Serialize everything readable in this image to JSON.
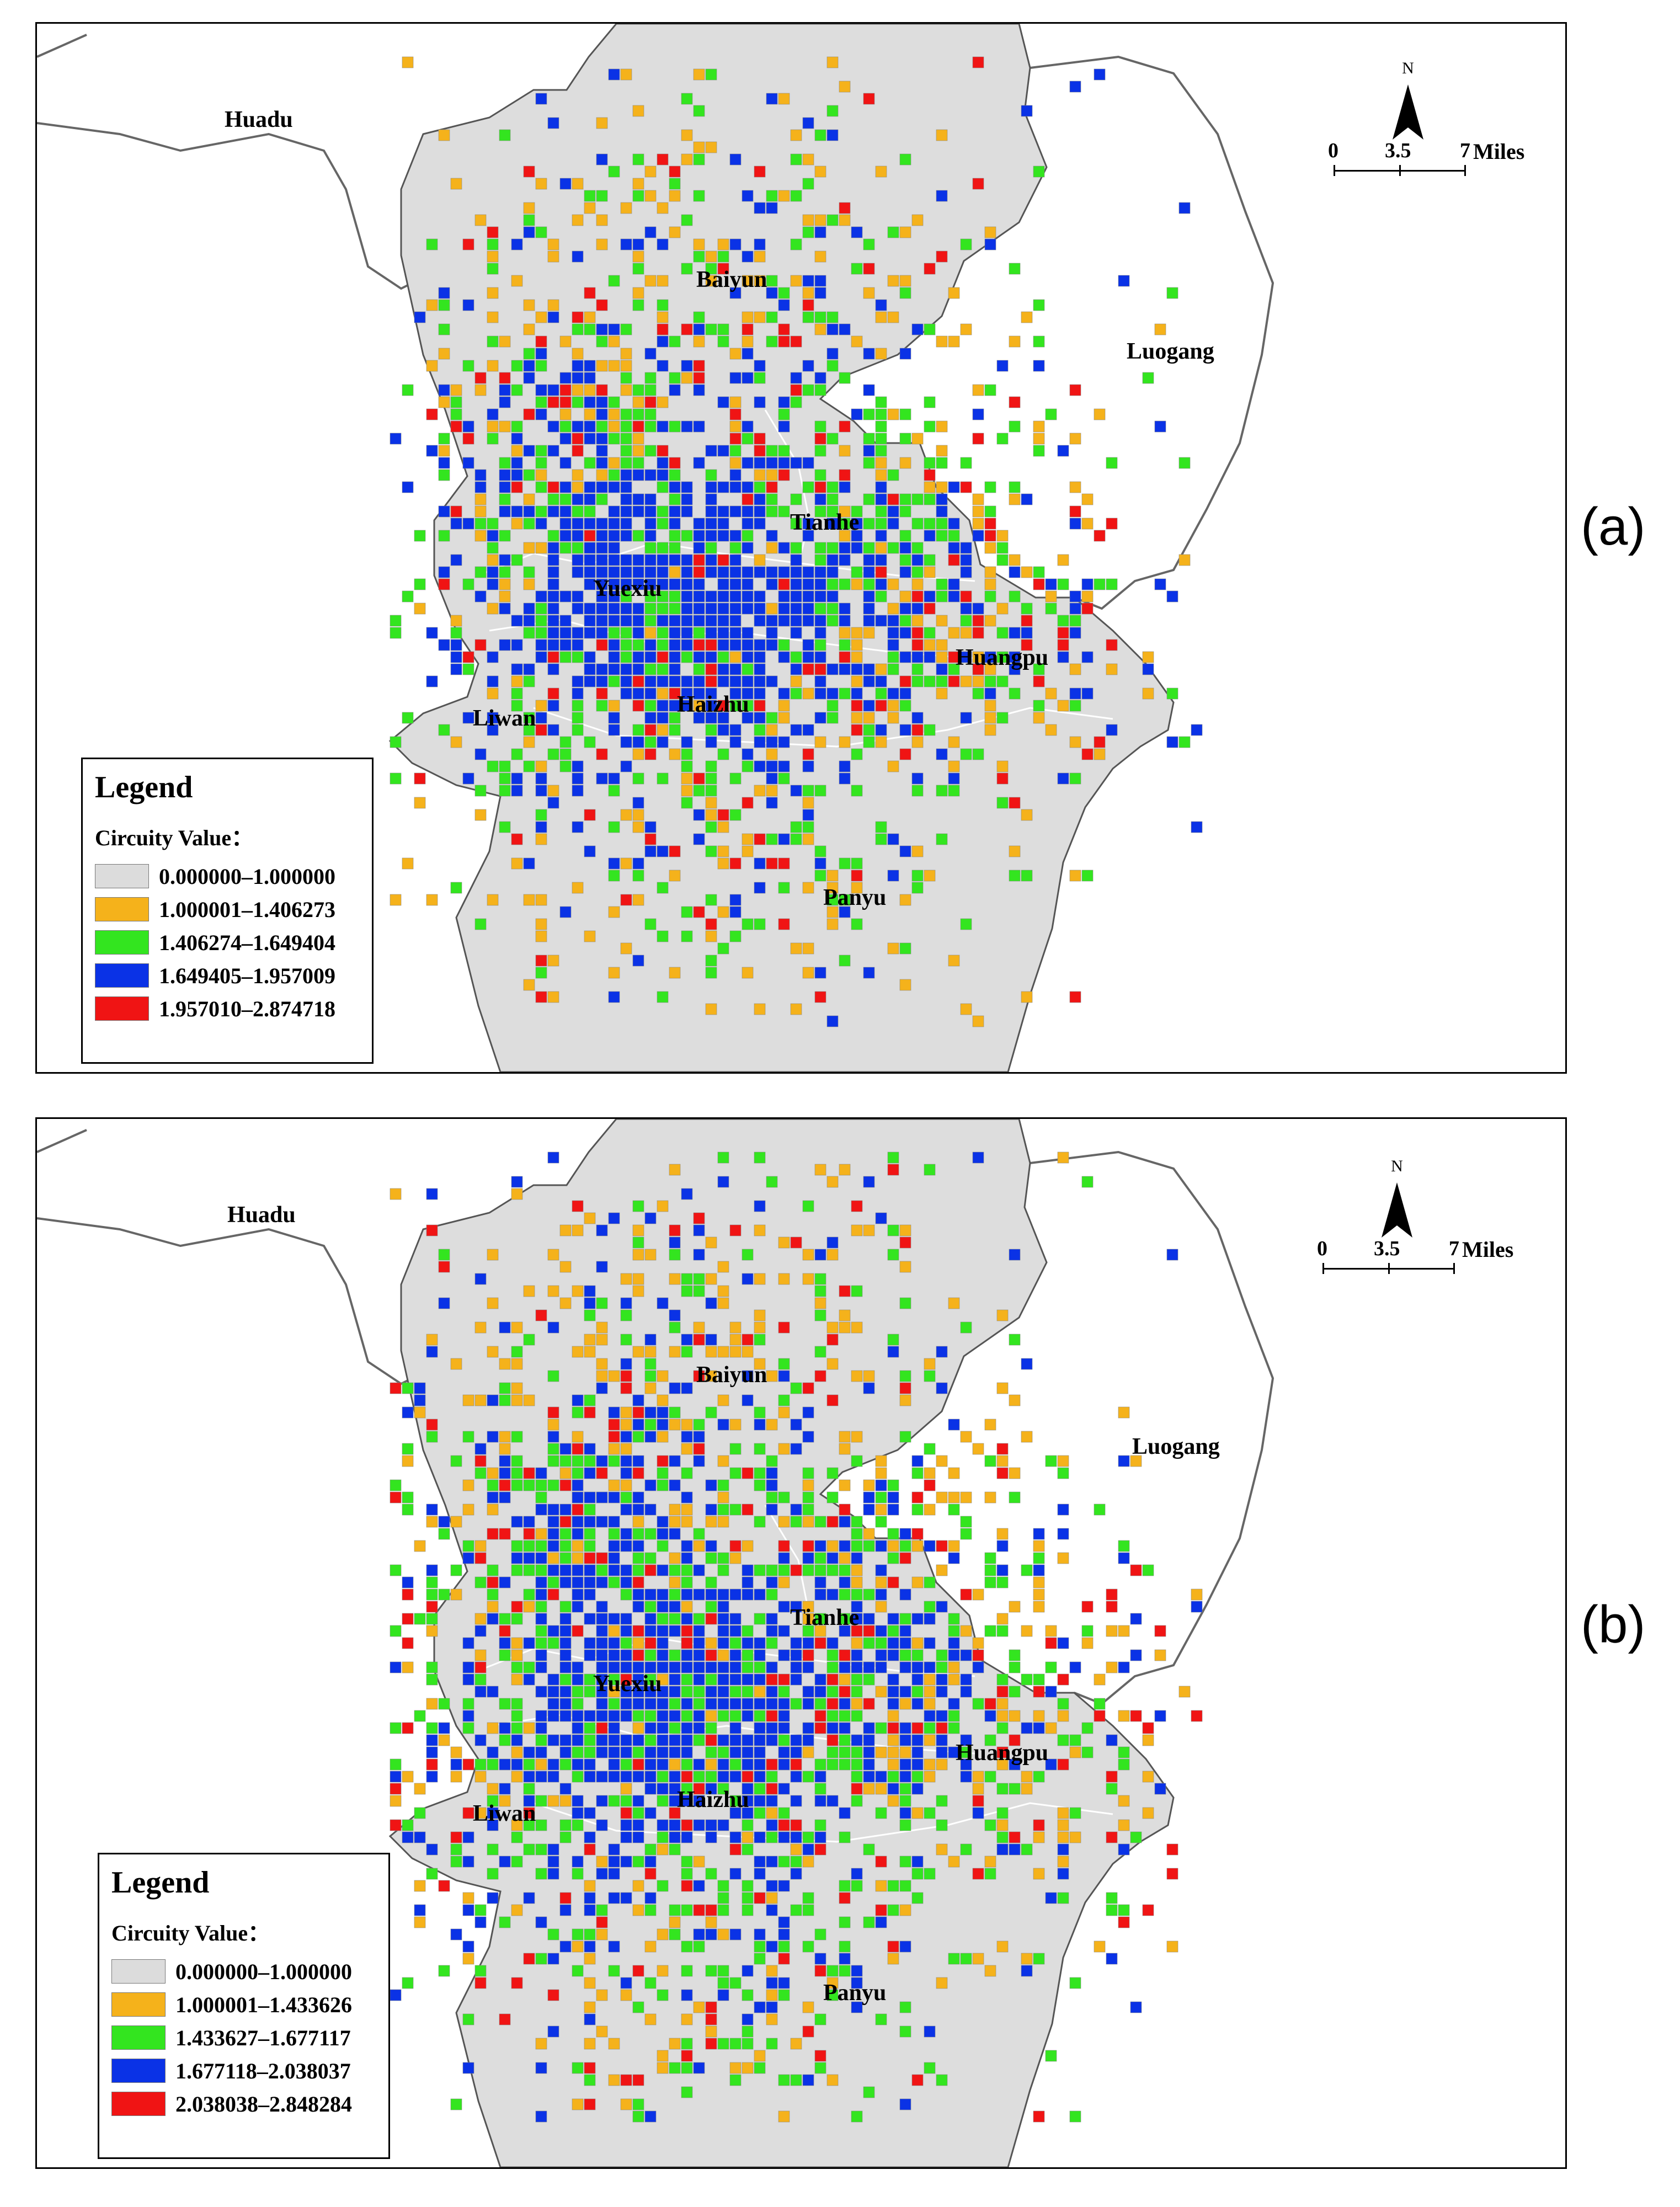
{
  "panels": [
    {
      "id": "a",
      "label": "(a)",
      "districts": [
        "Huadu",
        "Baiyun",
        "Luogang",
        "Tianhe",
        "Yuexiu",
        "Huangpu",
        "Liwan",
        "Haizhu",
        "Panyu"
      ],
      "legend": {
        "title": "Legend",
        "subtitle": "Circuity Value：",
        "classes": [
          {
            "range": "0.000000–1.000000",
            "color": "#dcdcdc"
          },
          {
            "range": "1.000001–1.406273",
            "color": "#f5b21b"
          },
          {
            "range": "1.406274–1.649404",
            "color": "#33e51f"
          },
          {
            "range": "1.649405–1.957009",
            "color": "#0a32e6"
          },
          {
            "range": "1.957010–2.874718",
            "color": "#f01414"
          }
        ]
      },
      "scale": {
        "north": "N",
        "ticks": [
          "0",
          "3.5",
          "7"
        ],
        "unit": "Miles"
      }
    },
    {
      "id": "b",
      "label": "(b)",
      "districts": [
        "Huadu",
        "Baiyun",
        "Luogang",
        "Tianhe",
        "Yuexiu",
        "Huangpu",
        "Liwan",
        "Haizhu",
        "Panyu"
      ],
      "legend": {
        "title": "Legend",
        "subtitle": "Circuity Value：",
        "classes": [
          {
            "range": "0.000000–1.000000",
            "color": "#dcdcdc"
          },
          {
            "range": "1.000001–1.433626",
            "color": "#f5b21b"
          },
          {
            "range": "1.433627–1.677117",
            "color": "#33e51f"
          },
          {
            "range": "1.677118–2.038037",
            "color": "#0a32e6"
          },
          {
            "range": "2.038038–2.848284",
            "color": "#f01414"
          }
        ]
      },
      "scale": {
        "north": "N",
        "ticks": [
          "0",
          "3.5",
          "7"
        ],
        "unit": "Miles"
      }
    }
  ]
}
